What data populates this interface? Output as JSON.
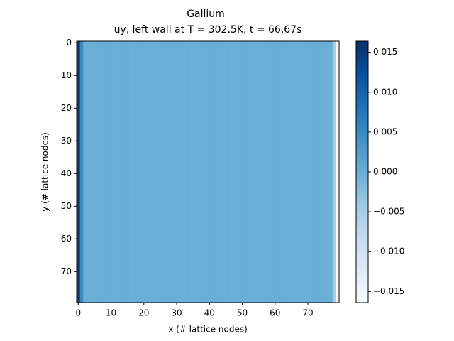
{
  "chart_data": {
    "type": "heatmap",
    "title": "Gallium",
    "subtitle": "uy, left wall at T = 302.5K, t = 66.67s",
    "x_label": "x (# lattice nodes)",
    "y_label": "y (# lattice nodes)",
    "colormap": "Blues",
    "x": [
      0,
      1,
      2,
      3,
      4,
      5,
      6,
      7,
      8,
      9,
      10,
      11,
      12,
      13,
      14,
      15,
      16,
      17,
      18,
      19,
      20,
      21,
      22,
      23,
      24,
      25,
      26,
      27,
      28,
      29,
      30,
      31,
      32,
      33,
      34,
      35,
      36,
      37,
      38,
      39,
      40,
      41,
      42,
      43,
      44,
      45,
      46,
      47,
      48,
      49,
      50,
      51,
      52,
      53,
      54,
      55,
      56,
      57,
      58,
      59,
      60,
      61,
      62,
      63,
      64,
      65,
      66,
      67,
      68,
      69,
      70,
      71,
      72,
      73,
      74,
      75,
      76,
      77,
      78,
      79
    ],
    "values": [
      0.0164,
      0.005,
      0,
      0,
      0,
      0,
      0,
      0,
      0,
      0,
      0,
      0,
      0,
      0,
      0,
      0,
      0,
      0,
      0,
      0,
      0,
      0,
      0,
      0,
      0,
      0,
      0,
      0,
      0,
      0,
      0,
      0,
      0,
      0,
      0,
      0,
      0,
      0,
      0,
      0,
      0,
      0,
      0,
      0,
      0,
      0,
      0,
      0,
      0,
      0,
      0,
      0,
      0,
      0,
      0,
      0,
      0,
      0,
      0,
      0,
      0,
      0,
      0,
      0,
      0,
      0,
      0,
      0,
      0,
      0,
      0,
      0,
      0,
      0,
      0,
      0,
      0,
      0,
      -0.005,
      -0.0164
    ],
    "xlim": [
      -0.5,
      79.5
    ],
    "ylim": [
      79.5,
      -0.5
    ],
    "xticks": [
      0,
      10,
      20,
      30,
      40,
      50,
      60,
      70
    ],
    "yticks": [
      0,
      10,
      20,
      30,
      40,
      50,
      60,
      70
    ],
    "clim": [
      -0.0164,
      0.0164
    ],
    "cticks": [
      {
        "value": -0.015,
        "label": "−0.015"
      },
      {
        "value": -0.01,
        "label": "−0.010"
      },
      {
        "value": -0.005,
        "label": "−0.005"
      },
      {
        "value": 0,
        "label": "0.000"
      },
      {
        "value": 0.005,
        "label": "0.005"
      },
      {
        "value": 0.01,
        "label": "0.010"
      },
      {
        "value": 0.015,
        "label": "0.015"
      }
    ]
  }
}
